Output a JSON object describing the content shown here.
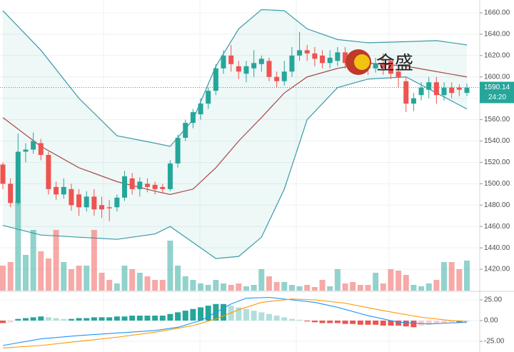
{
  "chart_data": {
    "type": "candlestick",
    "up_color": "#26a69a",
    "down_color": "#ef5350",
    "ylim": [
      1400,
      1672
    ],
    "yticks": [
      {
        "value": 1420,
        "label": "1420.00"
      },
      {
        "value": 1440,
        "label": "1440.00"
      },
      {
        "value": 1460,
        "label": "1460.00"
      },
      {
        "value": 1480,
        "label": "1480.00"
      },
      {
        "value": 1500,
        "label": "1500.00"
      },
      {
        "value": 1520,
        "label": "1520.00"
      },
      {
        "value": 1540,
        "label": "1540.00"
      },
      {
        "value": 1560,
        "label": "1560.00"
      },
      {
        "value": 1580,
        "label": "1580.00"
      },
      {
        "value": 1600,
        "label": "1600.00"
      },
      {
        "value": 1620,
        "label": "1620.00"
      },
      {
        "value": 1640,
        "label": "1640.00"
      },
      {
        "value": 1660,
        "label": "1660.00"
      }
    ],
    "grid": true,
    "open": [
      1518,
      1500,
      1482,
      1530,
      1532,
      1538,
      1527,
      1497,
      1490,
      1495,
      1490,
      1478,
      1488,
      1480,
      1478,
      1478,
      1487,
      1505,
      1495,
      1500,
      1499,
      1497,
      1495,
      1519,
      1543,
      1557,
      1565,
      1575,
      1587,
      1608,
      1620,
      1610,
      1603,
      1608,
      1612,
      1615,
      1600,
      1596,
      1605,
      1620,
      1625,
      1622,
      1620,
      1613,
      1615,
      1623,
      1615,
      1613,
      1612,
      1608,
      1613,
      1615,
      1605,
      1596,
      1575,
      1583,
      1588,
      1595,
      1583,
      1590,
      1590,
      1585
    ],
    "high": [
      1520,
      1505,
      1547,
      1538,
      1548,
      1542,
      1530,
      1502,
      1505,
      1500,
      1495,
      1493,
      1495,
      1488,
      1485,
      1490,
      1512,
      1510,
      1506,
      1505,
      1502,
      1500,
      1522,
      1546,
      1560,
      1570,
      1580,
      1590,
      1612,
      1625,
      1630,
      1615,
      1615,
      1625,
      1620,
      1618,
      1605,
      1615,
      1628,
      1642,
      1630,
      1628,
      1625,
      1625,
      1628,
      1628,
      1620,
      1618,
      1620,
      1618,
      1622,
      1618,
      1610,
      1600,
      1585,
      1595,
      1600,
      1600,
      1595,
      1595,
      1593,
      1594
    ],
    "low": [
      1495,
      1478,
      1480,
      1520,
      1528,
      1522,
      1490,
      1485,
      1486,
      1475,
      1470,
      1474,
      1470,
      1468,
      1465,
      1474,
      1484,
      1490,
      1488,
      1492,
      1490,
      1492,
      1493,
      1515,
      1540,
      1552,
      1560,
      1570,
      1583,
      1603,
      1605,
      1598,
      1595,
      1600,
      1605,
      1596,
      1590,
      1592,
      1600,
      1615,
      1615,
      1610,
      1608,
      1608,
      1610,
      1608,
      1605,
      1604,
      1602,
      1604,
      1602,
      1598,
      1590,
      1567,
      1568,
      1578,
      1580,
      1575,
      1578,
      1580,
      1582,
      1582
    ],
    "close": [
      1500,
      1482,
      1530,
      1532,
      1540,
      1527,
      1495,
      1490,
      1497,
      1480,
      1478,
      1488,
      1476,
      1476,
      1477,
      1487,
      1507,
      1495,
      1502,
      1497,
      1495,
      1495,
      1519,
      1543,
      1557,
      1567,
      1575,
      1587,
      1608,
      1620,
      1612,
      1605,
      1610,
      1613,
      1617,
      1600,
      1596,
      1605,
      1620,
      1625,
      1622,
      1617,
      1613,
      1618,
      1623,
      1613,
      1612,
      1610,
      1608,
      1612,
      1608,
      1603,
      1600,
      1575,
      1580,
      1590,
      1595,
      1583,
      1590,
      1585,
      1588,
      1590
    ],
    "volume": [
      35,
      40,
      125,
      50,
      85,
      55,
      45,
      85,
      40,
      30,
      35,
      35,
      85,
      25,
      15,
      10,
      35,
      30,
      25,
      20,
      15,
      15,
      70,
      35,
      20,
      15,
      10,
      8,
      15,
      10,
      8,
      10,
      6,
      8,
      30,
      20,
      12,
      12,
      8,
      6,
      8,
      5,
      15,
      6,
      30,
      10,
      12,
      8,
      8,
      25,
      10,
      30,
      28,
      22,
      8,
      6,
      10,
      15,
      40,
      40,
      30,
      42
    ],
    "bands": {
      "x": [
        0,
        5,
        10,
        15,
        20,
        22,
        25,
        28,
        31,
        34,
        37,
        40,
        44,
        48,
        53,
        57,
        61
      ],
      "series": [
        {
          "name": "upper",
          "color": "#3b9aa8",
          "values": [
            1662,
            1625,
            1580,
            1545,
            1538,
            1535,
            1560,
            1610,
            1645,
            1663,
            1662,
            1645,
            1635,
            1632,
            1633,
            1634,
            1630
          ]
        },
        {
          "name": "basis",
          "color": "#a84a4a",
          "values": [
            1562,
            1535,
            1515,
            1502,
            1493,
            1490,
            1495,
            1515,
            1540,
            1562,
            1585,
            1600,
            1608,
            1613,
            1610,
            1605,
            1600
          ]
        },
        {
          "name": "lower",
          "color": "#3b9aa8",
          "values": [
            1461,
            1452,
            1450,
            1448,
            1453,
            1460,
            1445,
            1430,
            1432,
            1450,
            1495,
            1560,
            1590,
            1598,
            1600,
            1585,
            1570
          ]
        }
      ]
    },
    "last_price": {
      "value": 1590.14,
      "label": "1590.14"
    },
    "countdown": "24:20",
    "watermark": "金盛",
    "macd": {
      "ylim": [
        -37,
        33.6
      ],
      "yticks": [
        {
          "value": 25,
          "label": "25.00"
        },
        {
          "value": 0,
          "label": "0.00"
        },
        {
          "value": -25,
          "label": "-25.00"
        }
      ],
      "histogram": [
        -3,
        -2,
        2,
        3,
        4,
        5,
        4,
        3,
        2,
        2,
        3,
        3,
        4,
        4,
        4,
        5,
        5,
        6,
        6,
        6,
        6,
        6,
        8,
        10,
        12,
        14,
        16,
        18,
        20,
        20,
        18,
        16,
        14,
        12,
        10,
        8,
        6,
        4,
        2,
        1,
        -1,
        -2,
        -3,
        -3,
        -3,
        -4,
        -4,
        -5,
        -5,
        -5,
        -6,
        -6,
        -6,
        -7,
        -8,
        -6,
        -5,
        -4,
        -3,
        -2,
        -2,
        -1
      ],
      "lines": [
        {
          "name": "macd",
          "color": "#2196f3",
          "x": [
            0,
            5,
            10,
            15,
            20,
            23,
            26,
            28,
            30,
            32,
            35,
            38,
            41,
            44,
            48,
            52,
            56,
            61
          ],
          "values": [
            -30,
            -22,
            -18,
            -15,
            -12,
            -8,
            0,
            10,
            20,
            27,
            28,
            25,
            22,
            16,
            6,
            -2,
            -4,
            -2
          ]
        },
        {
          "name": "signal",
          "color": "#ff9800",
          "x": [
            0,
            5,
            10,
            15,
            20,
            25,
            28,
            31,
            34,
            38,
            41,
            45,
            50,
            55,
            59,
            61
          ],
          "values": [
            -33,
            -30,
            -25,
            -20,
            -14,
            -6,
            2,
            13,
            22,
            26,
            25,
            21,
            12,
            4,
            0,
            -1
          ]
        }
      ]
    }
  }
}
